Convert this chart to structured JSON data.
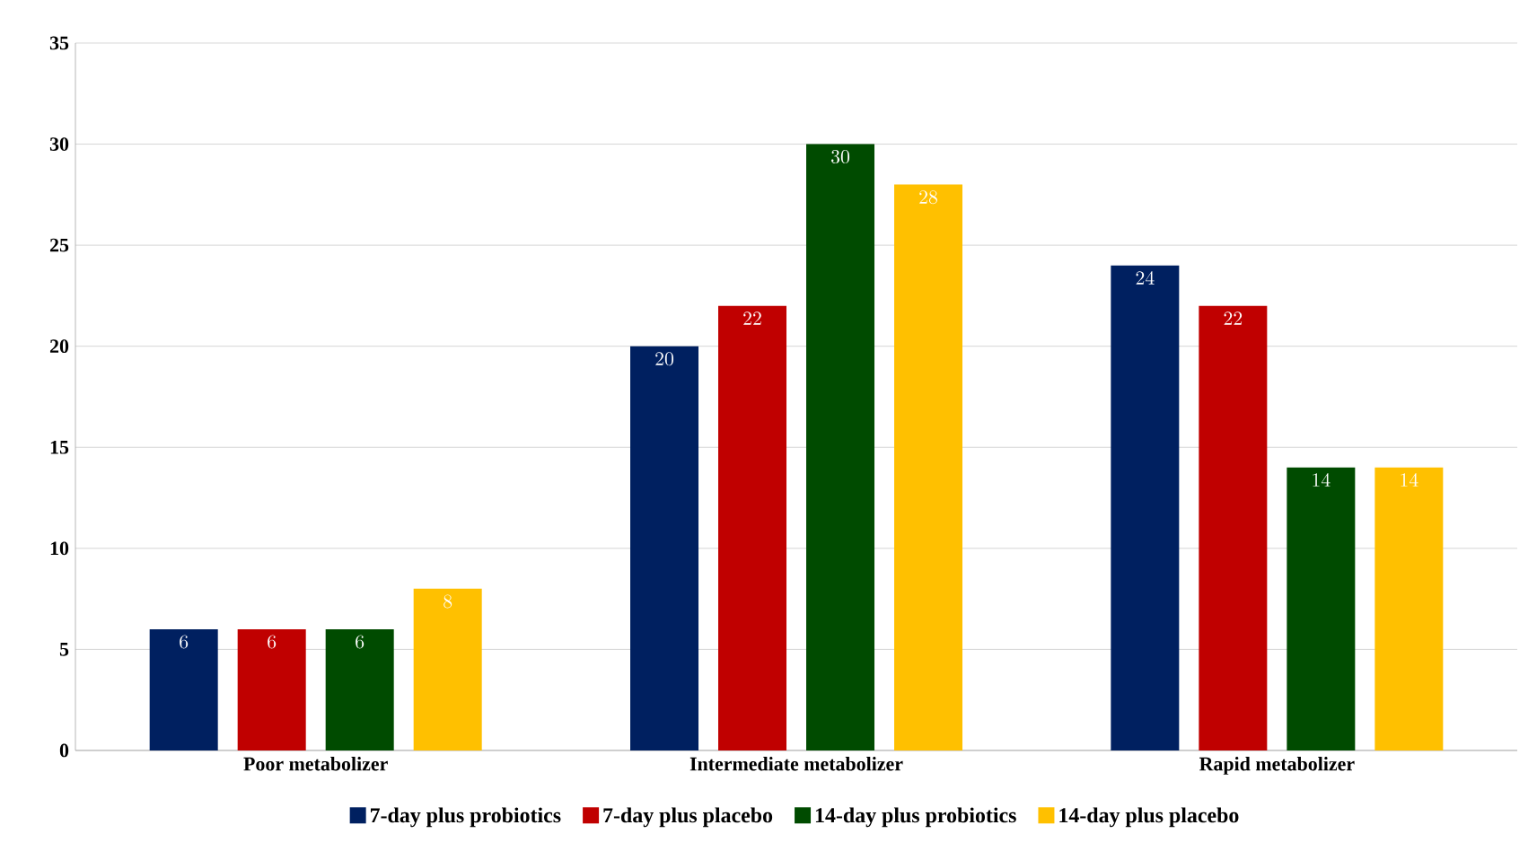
{
  "chart_data": {
    "type": "bar",
    "categories": [
      "Poor metabolizer",
      "Intermediate metabolizer",
      "Rapid metabolizer"
    ],
    "series": [
      {
        "name": "7-day plus probiotics",
        "color": "#002060",
        "values": [
          6,
          20,
          24
        ]
      },
      {
        "name": "7-day plus placebo",
        "color": "#c00000",
        "values": [
          6,
          22,
          22
        ]
      },
      {
        "name": "14-day plus probiotics",
        "color": "#004b00",
        "values": [
          6,
          30,
          14
        ]
      },
      {
        "name": "14-day plus placebo",
        "color": "#ffc000",
        "values": [
          8,
          28,
          14
        ]
      }
    ],
    "ylim": [
      0,
      35
    ],
    "yticks": [
      0,
      5,
      10,
      15,
      20,
      25,
      30,
      35
    ],
    "grid": "y",
    "legend": "bottom",
    "data_labels": true
  }
}
